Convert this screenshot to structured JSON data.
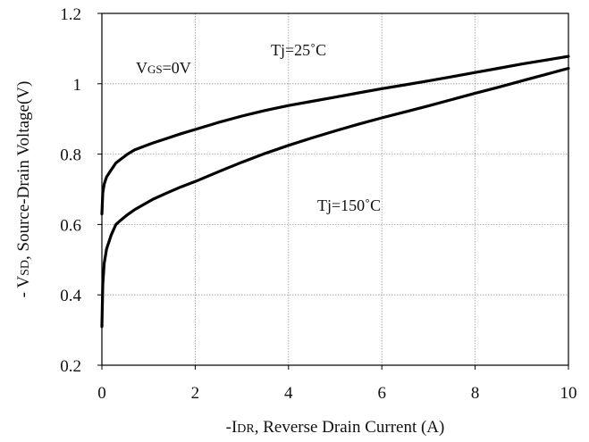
{
  "chart_data": {
    "type": "line",
    "title": "",
    "xlabel": {
      "prefix": "-I",
      "subscript": "DR",
      "suffix": ", Reverse Drain Current (A)"
    },
    "ylabel": {
      "prefix": "- V",
      "subscript": "SD",
      "suffix": ", Source-Drain Voltage(V)"
    },
    "xlim": [
      0,
      10
    ],
    "ylim": [
      0.2,
      1.2
    ],
    "xticks": [
      0,
      2,
      4,
      6,
      8,
      10
    ],
    "yticks": [
      0.2,
      0.4,
      0.6,
      0.8,
      1,
      1.2
    ],
    "xtick_labels": [
      "0",
      "2",
      "4",
      "6",
      "8",
      "10"
    ],
    "ytick_labels": [
      "0.2",
      "0.4",
      "0.6",
      "0.8",
      "1",
      "1.2"
    ],
    "grid": true,
    "annotations": {
      "vgs": {
        "prefix": "V",
        "subscript": "GS",
        "suffix": "=0V"
      },
      "tj25": "Tj=25˚C",
      "tj150": "Tj=150˚C"
    },
    "series": [
      {
        "name": "Tj=25˚C",
        "x": [
          0,
          0.02,
          0.05,
          0.1,
          0.2,
          0.3,
          0.4,
          0.55,
          0.7,
          0.9,
          1.1,
          1.4,
          1.7,
          2.0,
          2.5,
          3.0,
          3.5,
          4.0,
          4.5,
          5.0,
          5.5,
          6.0,
          6.5,
          7.0,
          7.5,
          8.0,
          8.5,
          9.0,
          9.5,
          10.0
        ],
        "y": [
          0.63,
          0.69,
          0.715,
          0.735,
          0.755,
          0.775,
          0.785,
          0.8,
          0.812,
          0.822,
          0.832,
          0.845,
          0.858,
          0.87,
          0.89,
          0.908,
          0.924,
          0.938,
          0.95,
          0.962,
          0.974,
          0.986,
          0.997,
          1.008,
          1.02,
          1.032,
          1.044,
          1.056,
          1.067,
          1.078
        ]
      },
      {
        "name": "Tj=150˚C",
        "x": [
          0,
          0.02,
          0.05,
          0.1,
          0.2,
          0.3,
          0.4,
          0.55,
          0.7,
          0.9,
          1.1,
          1.4,
          1.7,
          2.0,
          2.5,
          3.0,
          3.5,
          4.0,
          4.5,
          5.0,
          5.5,
          6.0,
          6.5,
          7.0,
          7.5,
          8.0,
          8.5,
          9.0,
          9.5,
          10.0
        ],
        "y": [
          0.31,
          0.43,
          0.49,
          0.53,
          0.57,
          0.6,
          0.612,
          0.628,
          0.642,
          0.657,
          0.672,
          0.69,
          0.707,
          0.722,
          0.75,
          0.777,
          0.802,
          0.825,
          0.846,
          0.866,
          0.885,
          0.903,
          0.92,
          0.937,
          0.955,
          0.973,
          0.99,
          1.008,
          1.026,
          1.044
        ]
      }
    ]
  }
}
